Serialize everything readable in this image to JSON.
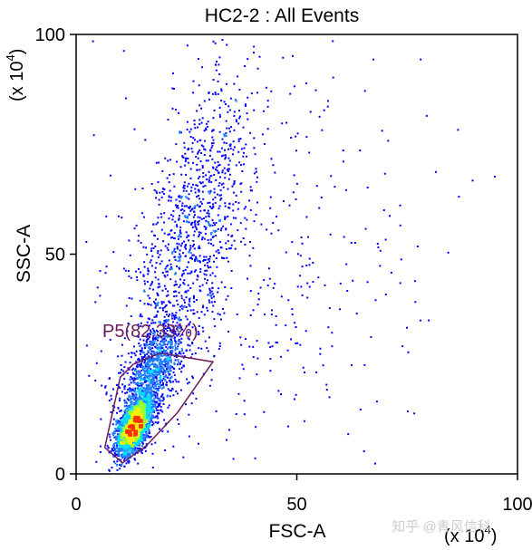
{
  "chart_data": {
    "type": "scatter",
    "title": "HC2-2 : All Events",
    "xlabel": "FSC-A",
    "ylabel": "SSC-A",
    "x_multiplier": "(x 10",
    "y_multiplier": "(x 10",
    "multiplier_exponent": "4",
    "xlim": [
      0,
      100
    ],
    "ylim": [
      0,
      100
    ],
    "x_ticks": [
      "0",
      "50",
      "100"
    ],
    "y_ticks": [
      "0",
      "50",
      "100"
    ],
    "x_tick_values": [
      0,
      50,
      100
    ],
    "y_tick_values": [
      0,
      50,
      100
    ],
    "gate": {
      "name": "P5(82.33%)",
      "vertices": [
        [
          10.0,
          22.0
        ],
        [
          13.0,
          25.0
        ],
        [
          19.0,
          27.5
        ],
        [
          31.0,
          25.5
        ],
        [
          23.0,
          14.0
        ],
        [
          16.0,
          6.5
        ],
        [
          10.5,
          2.5
        ],
        [
          6.5,
          6.0
        ]
      ]
    },
    "clusters": [
      {
        "x": 13.0,
        "y": 11.0,
        "sx": 1.9,
        "sy": 3.2,
        "rho": 0.55,
        "weight": 0.5
      },
      {
        "x": 17.0,
        "y": 23.0,
        "sx": 3.5,
        "sy": 6.0,
        "rho": 0.6,
        "weight": 0.22
      },
      {
        "x": 26.0,
        "y": 55.0,
        "sx": 7.0,
        "sy": 18.0,
        "rho": 0.6,
        "weight": 0.2
      },
      {
        "x": 40.0,
        "y": 45.0,
        "sx": 20.0,
        "sy": 28.0,
        "rho": 0.2,
        "weight": 0.08
      }
    ],
    "colors": {
      "sparse": "#0000ff",
      "low": "#1f7fff",
      "mid": "#00ddff",
      "high": "#99ff33",
      "peak": "#ffee00",
      "core": "#ff3300",
      "gate": "#6b1c58",
      "axis": "#000000"
    }
  },
  "watermark": "知乎 @青风信科"
}
